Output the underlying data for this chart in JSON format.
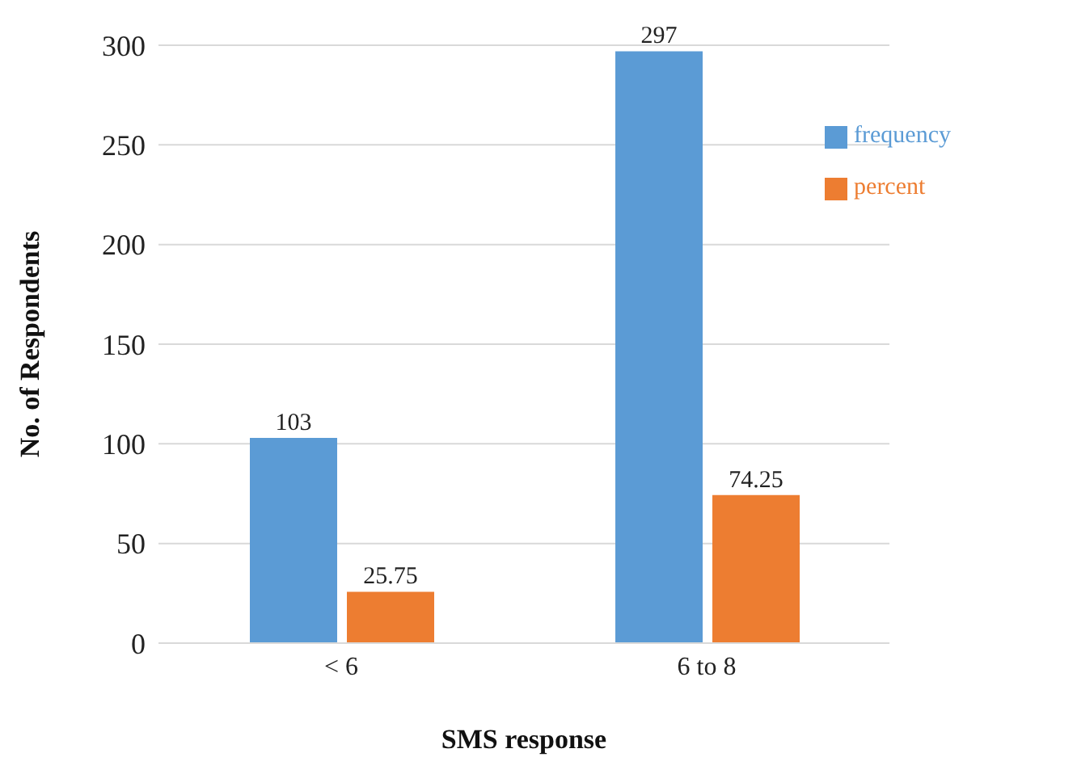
{
  "chart_data": {
    "type": "bar",
    "categories": [
      "< 6",
      "6 to 8"
    ],
    "series": [
      {
        "name": "frequency",
        "color": "#5b9bd5",
        "values": [
          103,
          297
        ]
      },
      {
        "name": "percent",
        "color": "#ed7d31",
        "values": [
          25.75,
          74.25
        ]
      }
    ],
    "xlabel": "SMS response",
    "ylabel": "No. of Respondents",
    "ylim": [
      0,
      300
    ],
    "yticks": [
      0,
      50,
      100,
      150,
      200,
      250,
      300
    ],
    "grid": "y",
    "legend": "top right",
    "data_labels": true
  }
}
